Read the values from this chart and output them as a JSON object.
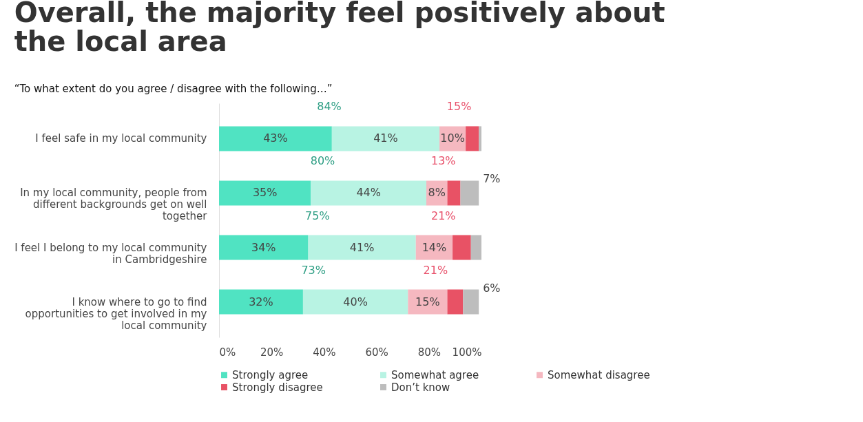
{
  "chart_data": {
    "type": "bar",
    "orientation": "horizontal",
    "stacked": true,
    "title": "Overall, the majority feel positively about the local area",
    "subtitle": "“To what extent do you agree / disagree with the following…”",
    "categories": [
      "I feel safe in my local community",
      "In my local community, people from different backgrounds get on well together",
      "I feel I belong to my local community in Cambridgeshire",
      "I know where to go to find opportunities to get involved in my local community"
    ],
    "series": [
      {
        "name": "Strongly agree",
        "color": "#50e3c2",
        "values": [
          43,
          35,
          34,
          32
        ],
        "value_labels": [
          "43%",
          "35%",
          "34%",
          "32%"
        ]
      },
      {
        "name": "Somewhat agree",
        "color": "#b8f3e3",
        "values": [
          41,
          44,
          41,
          40
        ],
        "value_labels": [
          "41%",
          "44%",
          "41%",
          "40%"
        ]
      },
      {
        "name": "Somewhat disagree",
        "color": "#f5b8c0",
        "values": [
          10,
          8,
          14,
          15
        ],
        "value_labels": [
          "10%",
          "8%",
          "14%",
          "15%"
        ]
      },
      {
        "name": "Strongly disagree",
        "color": "#e85265",
        "values": [
          5,
          5,
          7,
          6
        ],
        "value_labels": [
          null,
          null,
          null,
          null
        ]
      },
      {
        "name": "Don’t know",
        "color": "#bdbdbd",
        "values": [
          1,
          7,
          4,
          6
        ],
        "value_labels": [
          null,
          "7%",
          null,
          "6%"
        ]
      }
    ],
    "xlim": [
      0,
      100
    ],
    "xticks": [
      {
        "value": 0,
        "label": "0%"
      },
      {
        "value": 20,
        "label": "20%"
      },
      {
        "value": 40,
        "label": "40%"
      },
      {
        "value": 60,
        "label": "60%"
      },
      {
        "value": 80,
        "label": "80%"
      },
      {
        "value": 100,
        "label": "100%"
      }
    ],
    "annotations": [
      "84%",
      "15%",
      "80%",
      "13%",
      "75%",
      "21%",
      "73%",
      "21%"
    ],
    "grid": false,
    "legend": "bottom"
  }
}
